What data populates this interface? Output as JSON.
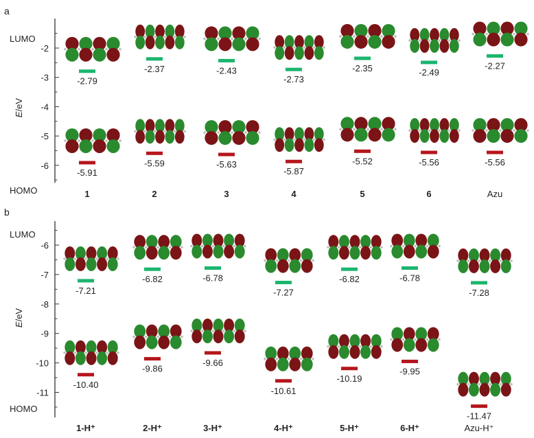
{
  "chart_data": [
    {
      "type": "scatter",
      "panel_label": "a",
      "ylabel": "E/eV",
      "ylim": [
        -6.6,
        -1.4
      ],
      "yticks": [
        -2,
        -3,
        -4,
        -5,
        -6
      ],
      "level_labels": {
        "top": "LUMO",
        "bottom": "HOMO"
      },
      "categories": [
        "1",
        "2",
        "3",
        "4",
        "5",
        "6",
        "Azu"
      ],
      "bold_categories": [
        true,
        true,
        true,
        true,
        true,
        true,
        false
      ],
      "series": [
        {
          "name": "LUMO",
          "color": "#1cb56e",
          "values": [
            -2.79,
            -2.37,
            -2.43,
            -2.73,
            -2.35,
            -2.49,
            -2.27
          ],
          "labels": [
            "-2.79",
            "-2.37",
            "-2.43",
            "-2.73",
            "-2.35",
            "-2.49",
            "-2.27"
          ]
        },
        {
          "name": "HOMO",
          "color": "#b5161c",
          "values": [
            -5.91,
            -5.59,
            -5.63,
            -5.87,
            -5.52,
            -5.56,
            -5.56
          ],
          "labels": [
            "-5.91",
            "-5.59",
            "-5.63",
            "-5.87",
            "-5.52",
            "-5.56",
            "-5.56"
          ]
        }
      ]
    },
    {
      "type": "scatter",
      "panel_label": "b",
      "ylabel": "E/eV",
      "ylim": [
        -11.85,
        -5.35
      ],
      "yticks": [
        -6,
        -7,
        -8,
        -9,
        -10,
        -11
      ],
      "level_labels": {
        "top": "LUMO",
        "bottom": "HOMO"
      },
      "categories": [
        "1-H⁺",
        "2-H⁺",
        "3-H⁺",
        "4-H⁺",
        "5-H⁺",
        "6-H⁺",
        "Azu-H⁺"
      ],
      "bold_categories": [
        true,
        true,
        true,
        true,
        true,
        true,
        false
      ],
      "series": [
        {
          "name": "LUMO",
          "color": "#1cb56e",
          "values": [
            -7.21,
            -6.82,
            -6.78,
            -7.27,
            -6.82,
            -6.78,
            -7.28
          ],
          "labels": [
            "-7.21",
            "-6.82",
            "-6.78",
            "-7.27",
            "-6.82",
            "-6.78",
            "-7.28"
          ]
        },
        {
          "name": "HOMO",
          "color": "#b5161c",
          "values": [
            -10.4,
            -9.86,
            -9.66,
            -10.61,
            -10.19,
            -9.95,
            -11.47
          ],
          "labels": [
            "-10.40",
            "-9.86",
            "-9.66",
            "-10.61",
            "-10.19",
            "-9.95",
            "-11.47"
          ]
        }
      ]
    }
  ],
  "colors": {
    "orbital_positive": "#7b1416",
    "orbital_negative": "#2a8a2e",
    "atom": "#bdbdbd"
  },
  "icons": {
    "orbital_lobes": "molecular-orbital-image"
  }
}
